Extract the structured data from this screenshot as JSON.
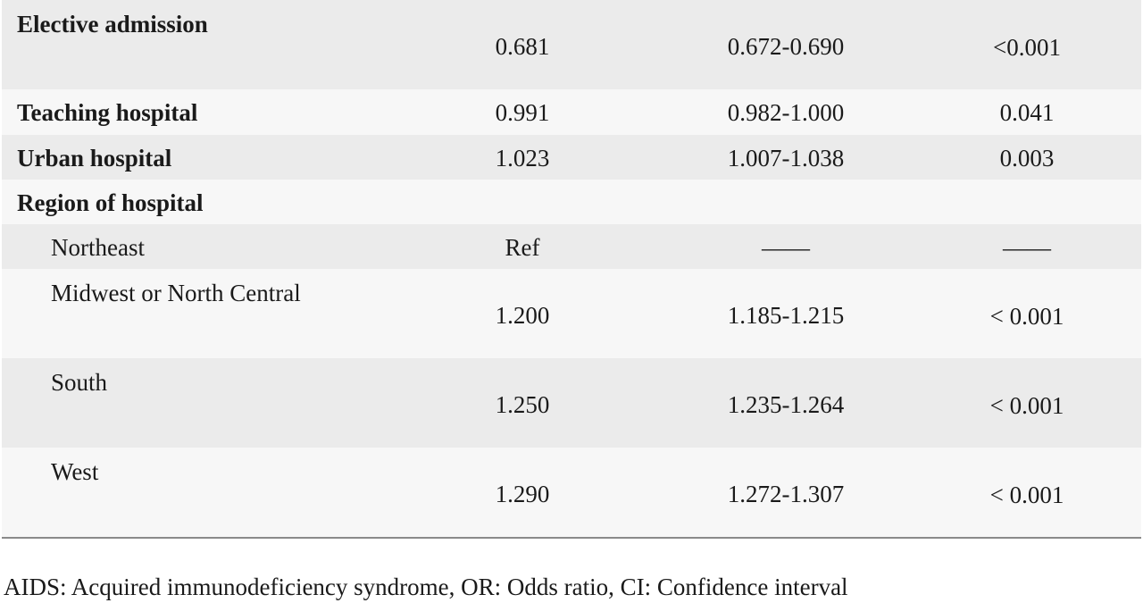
{
  "rows": [
    {
      "label": "Elective admission",
      "or": "0.681",
      "ci": "0.672-0.690",
      "p": "<0.001"
    },
    {
      "label": "Teaching hospital",
      "or": "0.991",
      "ci": "0.982-1.000",
      "p": "0.041"
    },
    {
      "label": "Urban hospital",
      "or": "1.023",
      "ci": "1.007-1.038",
      "p": "0.003"
    },
    {
      "label": "Region of hospital"
    },
    {
      "label": "Northeast",
      "or": "Ref",
      "ci": "——",
      "p": "——"
    },
    {
      "label": "Midwest or North Central",
      "or": "1.200",
      "ci": "1.185-1.215",
      "p": "< 0.001"
    },
    {
      "label": "South",
      "or": "1.250",
      "ci": "1.235-1.264",
      "p": "< 0.001"
    },
    {
      "label": "West",
      "or": "1.290",
      "ci": "1.272-1.307",
      "p": "< 0.001"
    }
  ],
  "footnote": "AIDS: Acquired immunodeficiency syndrome, OR: Odds ratio, CI: Confidence interval"
}
